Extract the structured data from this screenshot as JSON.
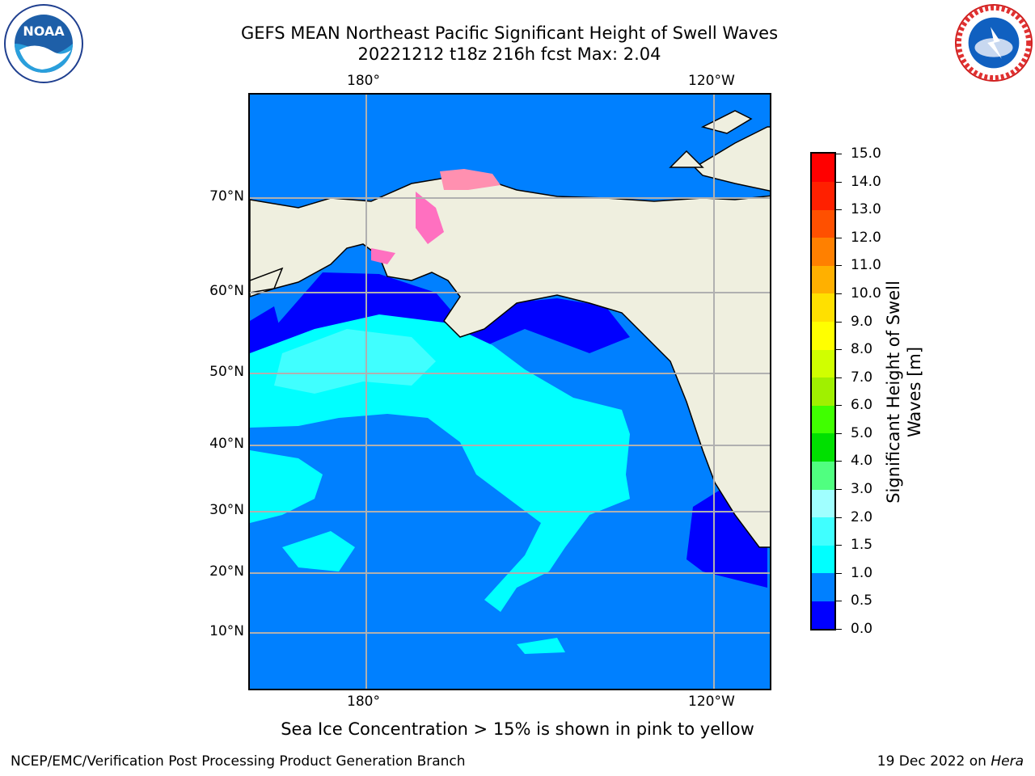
{
  "header": {
    "title_line1": "GEFS MEAN Northeast Pacific Significant Height of Swell Waves",
    "title_line2": "20221212 t18z 216h fcst   Max: 2.04"
  },
  "logos": {
    "left": {
      "icon": "noaa-logo",
      "text": "NOAA",
      "ring_text": "NATIONAL OCEANIC AND ATMOSPHERIC ADMINISTRATION · U.S. DEPARTMENT OF COMMERCE"
    },
    "right": {
      "icon": "nws-logo",
      "ring_text": "NATIONAL WEATHER SERVICE"
    }
  },
  "map": {
    "lon_labels_top": [
      "180°",
      "120°W"
    ],
    "lon_labels_bottom": [
      "180°",
      "120°W"
    ],
    "lat_labels": [
      "70°N",
      "60°N",
      "50°N",
      "40°N",
      "30°N",
      "20°N",
      "10°N"
    ],
    "ocean_color": "#0080ff",
    "land_color": "#efefdf"
  },
  "colorbar": {
    "title_line1": "Significant Height of Swell",
    "title_line2": "Waves [m]",
    "ticks": [
      "0.0",
      "0.5",
      "1.0",
      "1.5",
      "2.0",
      "3.0",
      "4.0",
      "5.0",
      "6.0",
      "7.0",
      "8.0",
      "9.0",
      "10.0",
      "11.0",
      "12.0",
      "13.0",
      "14.0",
      "15.0"
    ],
    "colors": [
      "#0000ff",
      "#0080ff",
      "#00ffff",
      "#40ffff",
      "#a0ffff",
      "#50ff80",
      "#00e000",
      "#40ff00",
      "#a0f000",
      "#d0ff00",
      "#ffff00",
      "#ffe000",
      "#ffb000",
      "#ff8000",
      "#ff5000",
      "#ff2000",
      "#ff0000"
    ]
  },
  "footnote": "Sea Ice Concentration > 15% is shown in pink to yellow",
  "footer": {
    "left": "NCEP/EMC/Verification Post Processing Product Generation Branch",
    "right_prefix": "19 Dec 2022 on",
    "right_host": "Hera"
  }
}
